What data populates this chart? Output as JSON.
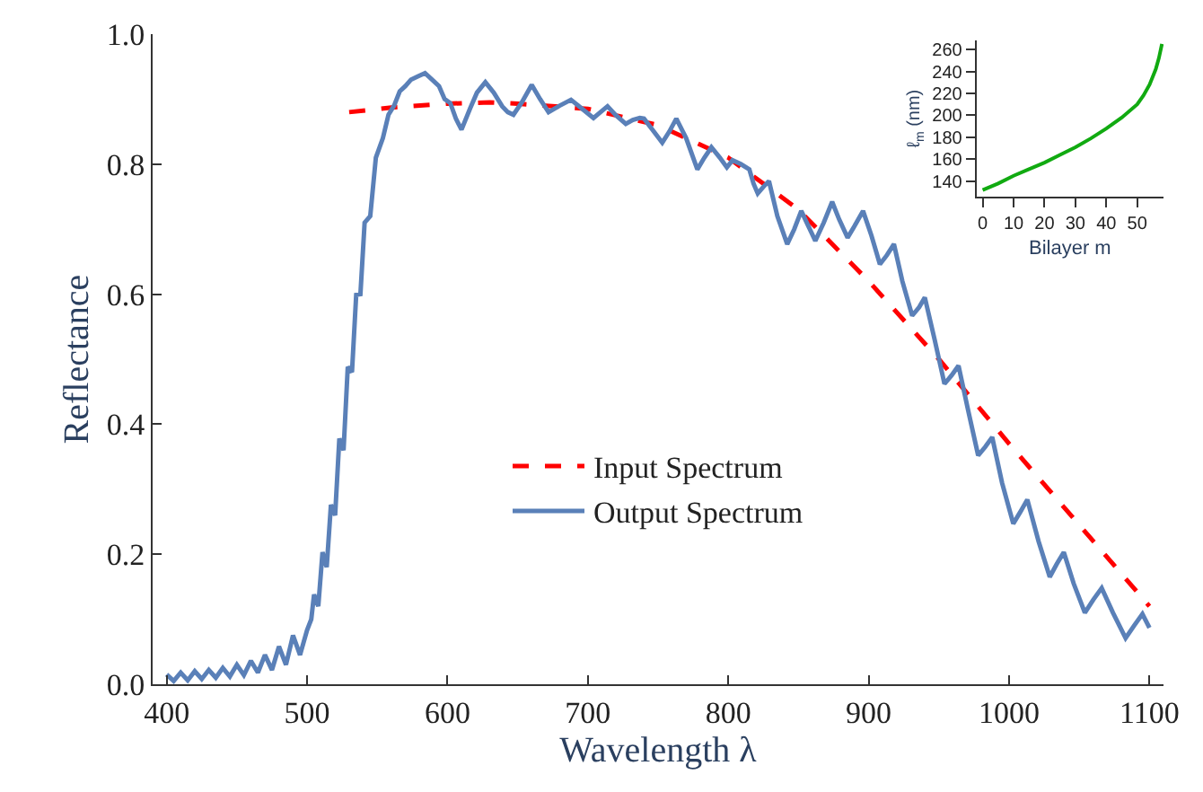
{
  "chart_data": [
    {
      "type": "line",
      "xlabel": "Wavelength λ",
      "ylabel": "Reflectance",
      "xlim": [
        390,
        1110
      ],
      "ylim": [
        0,
        1.0
      ],
      "xticks": [
        400,
        500,
        600,
        700,
        800,
        900,
        1000,
        1100
      ],
      "yticks": [
        {
          "value": 0,
          "label": "0.0"
        },
        0.2,
        0.4,
        0.6,
        0.8,
        {
          "value": 1.0,
          "label": "1.0"
        }
      ],
      "legend": "center",
      "marker": "none",
      "series": [
        {
          "name": "Input Spectrum",
          "color": "#ff0000",
          "line_style": "dashed",
          "x": [
            530,
            560,
            600,
            630,
            650,
            700,
            750,
            800,
            850,
            900,
            950,
            1000,
            1050,
            1100
          ],
          "values": [
            0.88,
            0.887,
            0.893,
            0.895,
            0.893,
            0.885,
            0.86,
            0.81,
            0.73,
            0.62,
            0.5,
            0.37,
            0.245,
            0.12
          ]
        },
        {
          "name": "Output Spectrum",
          "color": "#5a80b8",
          "line_style": "solid",
          "x": [
            400,
            405,
            410,
            415,
            420,
            425,
            430,
            435,
            440,
            445,
            450,
            455,
            460,
            465,
            470,
            475,
            480,
            485,
            490,
            495,
            500,
            503,
            505,
            508,
            511,
            514,
            517,
            520,
            523,
            526,
            529,
            532,
            535,
            538,
            541,
            545,
            549,
            554,
            558,
            562,
            566,
            570,
            574,
            579,
            584,
            589,
            594,
            598,
            602,
            606,
            610,
            616,
            621,
            627,
            633,
            639,
            643,
            647,
            653,
            660,
            666,
            672,
            680,
            688,
            696,
            704,
            709,
            714,
            720,
            727,
            732,
            737,
            740,
            747,
            753,
            758,
            763,
            770,
            778,
            783,
            788,
            794,
            799,
            803,
            809,
            815,
            818,
            821,
            825,
            829,
            835,
            842,
            847,
            852,
            857,
            862,
            868,
            874,
            879,
            885,
            890,
            896,
            902,
            908,
            913,
            918,
            924,
            931,
            936,
            940,
            947,
            954,
            959,
            964,
            971,
            978,
            983,
            988,
            995,
            1003,
            1008,
            1013,
            1021,
            1029,
            1034,
            1039,
            1046,
            1054,
            1060,
            1066,
            1074,
            1083,
            1089,
            1095,
            1100
          ],
          "values": [
            0.015,
            0.005,
            0.018,
            0.006,
            0.02,
            0.008,
            0.022,
            0.01,
            0.025,
            0.012,
            0.03,
            0.014,
            0.036,
            0.018,
            0.045,
            0.022,
            0.058,
            0.03,
            0.075,
            0.045,
            0.083,
            0.1,
            0.138,
            0.12,
            0.203,
            0.18,
            0.276,
            0.26,
            0.378,
            0.36,
            0.488,
            0.48,
            0.599,
            0.6,
            0.71,
            0.72,
            0.81,
            0.84,
            0.876,
            0.89,
            0.912,
            0.92,
            0.93,
            0.935,
            0.94,
            0.93,
            0.92,
            0.9,
            0.894,
            0.87,
            0.853,
            0.885,
            0.91,
            0.926,
            0.91,
            0.889,
            0.88,
            0.876,
            0.895,
            0.922,
            0.9,
            0.88,
            0.89,
            0.899,
            0.885,
            0.871,
            0.88,
            0.889,
            0.875,
            0.862,
            0.868,
            0.871,
            0.87,
            0.85,
            0.833,
            0.85,
            0.87,
            0.84,
            0.792,
            0.81,
            0.826,
            0.81,
            0.795,
            0.806,
            0.8,
            0.792,
            0.77,
            0.755,
            0.765,
            0.774,
            0.72,
            0.677,
            0.7,
            0.728,
            0.705,
            0.682,
            0.71,
            0.742,
            0.715,
            0.687,
            0.705,
            0.728,
            0.69,
            0.646,
            0.66,
            0.677,
            0.62,
            0.567,
            0.58,
            0.595,
            0.53,
            0.462,
            0.475,
            0.49,
            0.42,
            0.352,
            0.365,
            0.38,
            0.31,
            0.247,
            0.265,
            0.284,
            0.22,
            0.165,
            0.185,
            0.203,
            0.155,
            0.11,
            0.13,
            0.148,
            0.11,
            0.071,
            0.09,
            0.108,
            0.087
          ]
        }
      ]
    },
    {
      "type": "line",
      "xlabel": "Bilayer m",
      "ylabel": "ℓ$_{m}$ (nm)",
      "xlim": [
        -2,
        58.5
      ],
      "ylim": [
        126,
        268
      ],
      "xticks": [
        0,
        10,
        20,
        30,
        40,
        50
      ],
      "yticks": [
        140,
        160,
        180,
        200,
        220,
        240,
        260
      ],
      "legend": false,
      "marker": "none",
      "series": [
        {
          "color": "#11aa11",
          "line_style": "solid",
          "x": [
            0,
            5,
            10,
            15,
            20,
            25,
            30,
            35,
            40,
            45,
            50,
            52,
            54,
            56,
            57,
            58
          ],
          "values": [
            132,
            138,
            145,
            151,
            157,
            164,
            171,
            179,
            188,
            198,
            210,
            218,
            228,
            242,
            252,
            265
          ]
        }
      ]
    }
  ]
}
